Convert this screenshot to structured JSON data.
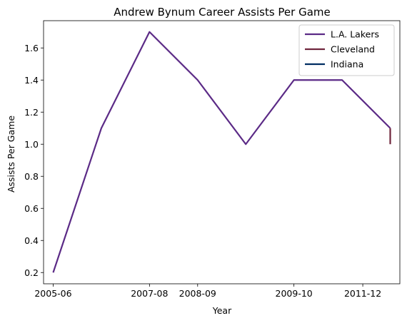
{
  "chart_data": {
    "type": "line",
    "title": "Andrew Bynum Career Assists Per Game",
    "xlabel": "Year",
    "ylabel": "Assists Per Game",
    "x_ticks": [
      "2005-06",
      "2007-08",
      "2008-09",
      "2009-10",
      "2011-12"
    ],
    "y_ticks": [
      "0.2",
      "0.4",
      "0.6",
      "0.8",
      "1.0",
      "1.2",
      "1.4",
      "1.6"
    ],
    "xlim": [
      -0.2,
      7.2
    ],
    "ylim": [
      0.13,
      1.77
    ],
    "grid": false,
    "legend_position": "top-right",
    "series": [
      {
        "name": "L.A. Lakers",
        "color": "#5b2a86",
        "points": [
          {
            "x": 0,
            "y": 0.2
          },
          {
            "x": 1,
            "y": 1.1
          },
          {
            "x": 2,
            "y": 1.7
          },
          {
            "x": 3,
            "y": 1.4
          },
          {
            "x": 4,
            "y": 1.0
          },
          {
            "x": 5,
            "y": 1.4
          },
          {
            "x": 6,
            "y": 1.4
          },
          {
            "x": 7,
            "y": 1.1
          }
        ]
      },
      {
        "name": "Cleveland",
        "color": "#6f263d",
        "points": [
          {
            "x": 7,
            "y": 1.1
          },
          {
            "x": 7,
            "y": 1.0
          }
        ]
      },
      {
        "name": "Indiana",
        "color": "#002d62",
        "points": []
      }
    ]
  }
}
